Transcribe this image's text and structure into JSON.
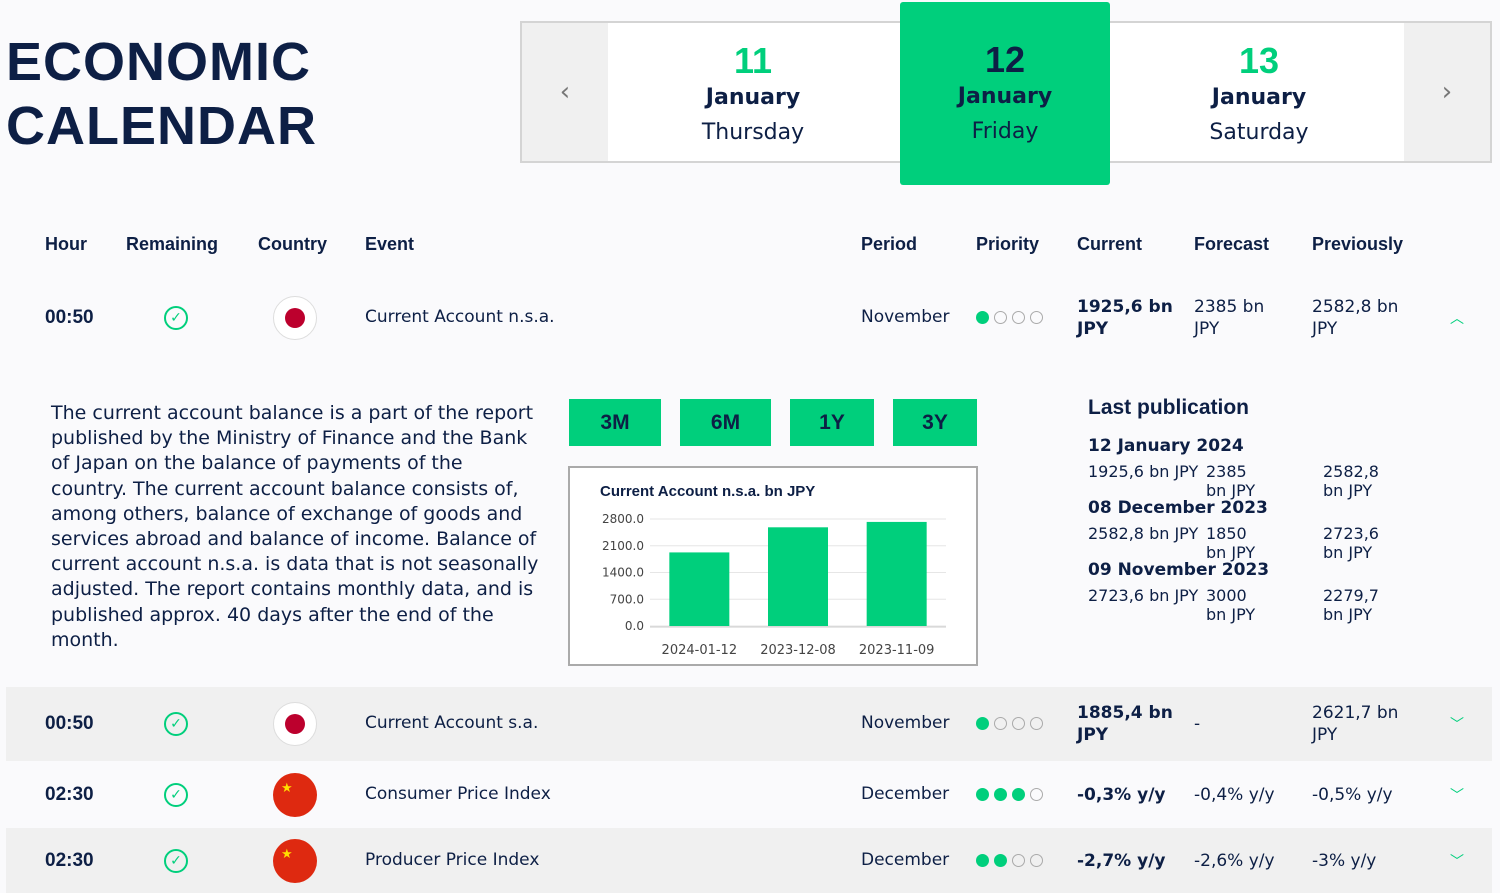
{
  "title": [
    "ECONOMIC",
    "CALENDAR"
  ],
  "days": [
    {
      "day": "11",
      "month": "January",
      "weekday": "Thursday"
    },
    {
      "day": "12",
      "month": "January",
      "weekday": "Friday"
    },
    {
      "day": "13",
      "month": "January",
      "weekday": "Saturday"
    }
  ],
  "nav": {
    "prev": "‹",
    "next": "›"
  },
  "headers": {
    "hour": "Hour",
    "remaining": "Remaining",
    "country": "Country",
    "event": "Event",
    "period": "Period",
    "priority": "Priority",
    "current": "Current",
    "forecast": "Forecast",
    "previously": "Previously"
  },
  "rows": [
    {
      "hour": "00:50",
      "country": "Japan",
      "event": "Current Account n.s.a.",
      "period": "November",
      "priority": 1,
      "current": "1925,6 bn JPY",
      "forecast": "2385 bn JPY",
      "previously": "2582,8 bn JPY",
      "expanded": true
    },
    {
      "hour": "00:50",
      "country": "Japan",
      "event": "Current Account s.a.",
      "period": "November",
      "priority": 1,
      "current": "1885,4 bn JPY",
      "forecast": "-",
      "previously": "2621,7 bn JPY",
      "expanded": false
    },
    {
      "hour": "02:30",
      "country": "China",
      "event": "Consumer Price Index",
      "period": "December",
      "priority": 3,
      "current": "-0,3% y/y",
      "forecast": "-0,4% y/y",
      "previously": "-0,5% y/y",
      "expanded": false
    },
    {
      "hour": "02:30",
      "country": "China",
      "event": "Producer Price Index",
      "period": "December",
      "priority": 2,
      "current": "-2,7% y/y",
      "forecast": "-2,6% y/y",
      "previously": "-3% y/y",
      "expanded": false
    }
  ],
  "detail": {
    "description": "The current account balance is a part of the report published by the Ministry of Finance and the Bank of Japan on the balance of payments of the country. The current account balance consists of, among others, balance of exchange of goods and services abroad and balance of income. Balance of current account n.s.a. is data that is not seasonally adjusted. The report contains monthly data, and is published approx. 40 days after the end of the month.",
    "ranges": [
      "3M",
      "6M",
      "1Y",
      "3Y"
    ],
    "last_publication_title": "Last publication",
    "publications": [
      {
        "date": "12 January 2024",
        "current": "1925,6 bn JPY",
        "forecast": "2385 bn JPY",
        "previous": "2582,8 bn JPY"
      },
      {
        "date": "08 December 2023",
        "current": "2582,8 bn JPY",
        "forecast": "1850 bn JPY",
        "previous": "2723,6 bn JPY"
      },
      {
        "date": "09 November 2023",
        "current": "2723,6 bn JPY",
        "forecast": "3000 bn JPY",
        "previous": "2279,7 bn JPY"
      }
    ]
  },
  "chart_data": {
    "type": "bar",
    "title": "Current Account n.s.a. bn JPY",
    "categories": [
      "2024-01-12",
      "2023-12-08",
      "2023-11-09"
    ],
    "values": [
      1925.6,
      2582.8,
      2723.6
    ],
    "ylim": [
      0,
      2800
    ],
    "yticks": [
      "2800.0",
      "2100.0",
      "1400.0",
      "700.0",
      "0.0"
    ],
    "grid": true,
    "color": "#00cf7c"
  },
  "colors": {
    "accent": "#00cf7c",
    "text": "#0d1f45"
  }
}
